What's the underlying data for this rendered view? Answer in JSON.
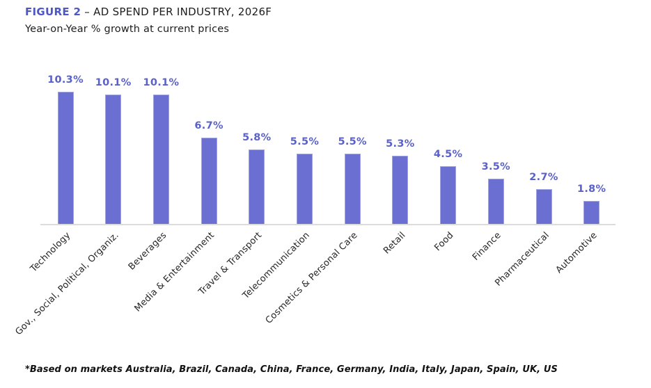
{
  "header": {
    "figure_label": "FIGURE 2",
    "title": "– AD SPEND PER INDUSTRY, 2026F",
    "subtitle": "Year-on-Year % growth at current prices"
  },
  "chart_data": {
    "type": "bar",
    "title": "FIGURE 2 – AD SPEND PER INDUSTRY, 2026F",
    "subtitle": "Year-on-Year % growth at current prices",
    "categories": [
      "Technology",
      "Gov., Social, Political, Organiz.",
      "Beverages",
      "Media & Entertainment",
      "Travel & Transport",
      "Telecommunication",
      "Cosmetics & Personal Care",
      "Retail",
      "Food",
      "Finance",
      "Pharmaceutical",
      "Automotive"
    ],
    "values": [
      10.3,
      10.1,
      10.1,
      6.7,
      5.8,
      5.5,
      5.5,
      5.3,
      4.5,
      3.5,
      2.7,
      1.8
    ],
    "value_labels": [
      "10.3%",
      "10.1%",
      "10.1%",
      "6.7%",
      "5.8%",
      "5.5%",
      "5.5%",
      "5.3%",
      "4.5%",
      "3.5%",
      "2.7%",
      "1.8%"
    ],
    "unit": "%",
    "xlabel": "",
    "ylabel": "Year-on-Year % growth",
    "ylim": [
      0,
      12
    ],
    "grid": false,
    "legend": null,
    "bar_color": "#6b6fd1",
    "value_label_color": "#5a61c8",
    "axis_color": "#dcdcdc"
  },
  "footnote": "*Based on markets Australia, Brazil, Canada, China, France, Germany, India, Italy, Japan, Spain, UK, US"
}
